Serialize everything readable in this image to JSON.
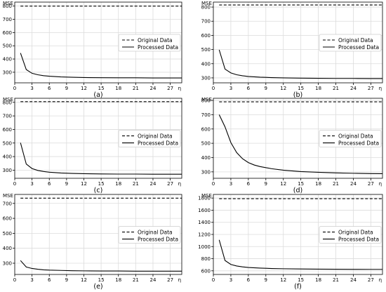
{
  "chart_data": [
    {
      "type": "line",
      "panel_label": "(a)",
      "ylabel": "MSE",
      "xlabel": "η",
      "xlim": [
        0,
        29
      ],
      "ylim": [
        220,
        830
      ],
      "xticks": [
        0,
        3,
        6,
        9,
        12,
        15,
        18,
        21,
        24,
        27
      ],
      "xtick_labels": [
        "0",
        "3",
        "6",
        "9",
        "12",
        "15",
        "18",
        "21",
        "24",
        "27"
      ],
      "yticks": [
        300,
        400,
        500,
        600,
        700,
        800
      ],
      "ytick_labels": [
        "300",
        "400",
        "500",
        "600",
        "700",
        "800"
      ],
      "grid": true,
      "legend": "center-right",
      "series": [
        {
          "name": "Original Data",
          "style": "dashed",
          "x": [
            1,
            29
          ],
          "y": [
            800,
            800
          ]
        },
        {
          "name": "Processed Data",
          "style": "solid",
          "x": [
            1,
            2,
            3,
            4,
            5,
            6,
            8,
            10,
            12,
            15,
            18,
            21,
            24,
            27,
            29
          ],
          "y": [
            445,
            320,
            292,
            281,
            274,
            270,
            265,
            262,
            260,
            259,
            258,
            258,
            257,
            257,
            257
          ]
        }
      ]
    },
    {
      "type": "line",
      "panel_label": "(b)",
      "ylabel": "MSE",
      "xlabel": "η",
      "xlim": [
        0,
        29
      ],
      "ylim": [
        265,
        835
      ],
      "xticks": [
        0,
        3,
        6,
        9,
        12,
        15,
        18,
        21,
        24,
        27
      ],
      "xtick_labels": [
        "0",
        "3",
        "6",
        "9",
        "12",
        "15",
        "18",
        "21",
        "24",
        "27"
      ],
      "yticks": [
        300,
        400,
        500,
        600,
        700,
        800
      ],
      "ytick_labels": [
        "300",
        "400",
        "500",
        "600",
        "700",
        "800"
      ],
      "grid": true,
      "legend": "center-right",
      "series": [
        {
          "name": "Original Data",
          "style": "dashed",
          "x": [
            1,
            29
          ],
          "y": [
            815,
            815
          ]
        },
        {
          "name": "Processed Data",
          "style": "solid",
          "x": [
            1,
            2,
            3,
            4,
            5,
            6,
            8,
            10,
            12,
            15,
            18,
            21,
            24,
            27,
            29
          ],
          "y": [
            498,
            362,
            335,
            322,
            315,
            310,
            305,
            302,
            300,
            298,
            297,
            296,
            296,
            295,
            295
          ]
        }
      ]
    },
    {
      "type": "line",
      "panel_label": "(c)",
      "ylabel": "MSE",
      "xlabel": "η",
      "xlim": [
        0,
        29
      ],
      "ylim": [
        240,
        830
      ],
      "xticks": [
        0,
        3,
        6,
        9,
        12,
        15,
        18,
        21,
        24,
        27
      ],
      "xtick_labels": [
        "0",
        "3",
        "6",
        "9",
        "12",
        "15",
        "18",
        "21",
        "24",
        "27"
      ],
      "yticks": [
        300,
        400,
        500,
        600,
        700,
        800
      ],
      "ytick_labels": [
        "300",
        "400",
        "500",
        "600",
        "700",
        "800"
      ],
      "grid": true,
      "legend": "center-right",
      "series": [
        {
          "name": "Original Data",
          "style": "dashed",
          "x": [
            1,
            29
          ],
          "y": [
            805,
            805
          ]
        },
        {
          "name": "Processed Data",
          "style": "solid",
          "x": [
            1,
            2,
            3,
            4,
            5,
            6,
            8,
            10,
            12,
            15,
            18,
            21,
            24,
            27,
            29
          ],
          "y": [
            502,
            345,
            312,
            298,
            290,
            285,
            279,
            276,
            274,
            272,
            271,
            271,
            270,
            270,
            270
          ]
        }
      ]
    },
    {
      "type": "line",
      "panel_label": "(d)",
      "ylabel": "MSE",
      "xlabel": "η",
      "xlim": [
        0,
        29
      ],
      "ylim": [
        255,
        815
      ],
      "xticks": [
        0,
        3,
        6,
        9,
        12,
        15,
        18,
        21,
        24,
        27
      ],
      "xtick_labels": [
        "0",
        "3",
        "6",
        "9",
        "12",
        "15",
        "18",
        "21",
        "24",
        "27"
      ],
      "yticks": [
        300,
        400,
        500,
        600,
        700,
        800
      ],
      "ytick_labels": [
        "300",
        "400",
        "500",
        "600",
        "700",
        "800"
      ],
      "grid": true,
      "legend": "center-right",
      "series": [
        {
          "name": "Original Data",
          "style": "dashed",
          "x": [
            1,
            29
          ],
          "y": [
            790,
            790
          ]
        },
        {
          "name": "Processed Data",
          "style": "solid",
          "x": [
            1,
            2,
            3,
            4,
            5,
            6,
            7,
            8,
            10,
            12,
            15,
            18,
            21,
            24,
            27,
            29
          ],
          "y": [
            700,
            615,
            505,
            435,
            392,
            365,
            348,
            337,
            322,
            312,
            302,
            297,
            293,
            290,
            288,
            287
          ]
        }
      ]
    },
    {
      "type": "line",
      "panel_label": "(e)",
      "ylabel": "MSE",
      "xlabel": "η",
      "xlim": [
        0,
        29
      ],
      "ylim": [
        225,
        760
      ],
      "xticks": [
        0,
        3,
        6,
        9,
        12,
        15,
        18,
        21,
        24,
        27
      ],
      "xtick_labels": [
        "0",
        "3",
        "6",
        "9",
        "12",
        "15",
        "18",
        "21",
        "24",
        "27"
      ],
      "yticks": [
        300,
        400,
        500,
        600,
        700
      ],
      "ytick_labels": [
        "300",
        "400",
        "500",
        "600",
        "700"
      ],
      "grid": true,
      "legend": "center-right",
      "series": [
        {
          "name": "Original Data",
          "style": "dashed",
          "x": [
            1,
            29
          ],
          "y": [
            735,
            735
          ]
        },
        {
          "name": "Processed Data",
          "style": "solid",
          "x": [
            1,
            2,
            3,
            4,
            5,
            6,
            8,
            10,
            12,
            15,
            18,
            21,
            24,
            27,
            29
          ],
          "y": [
            318,
            275,
            265,
            260,
            256,
            254,
            252,
            250,
            249,
            248,
            248,
            247,
            247,
            247,
            247
          ]
        }
      ]
    },
    {
      "type": "line",
      "panel_label": "(f)",
      "ylabel": "MSE",
      "xlabel": "η",
      "xlim": [
        0,
        29
      ],
      "ylim": [
        540,
        1860
      ],
      "xticks": [
        0,
        3,
        6,
        9,
        12,
        15,
        18,
        21,
        24,
        27
      ],
      "xtick_labels": [
        "0",
        "3",
        "6",
        "9",
        "12",
        "15",
        "18",
        "21",
        "24",
        "27"
      ],
      "yticks": [
        600,
        800,
        1000,
        1200,
        1400,
        1600,
        1800
      ],
      "ytick_labels": [
        "600",
        "800",
        "1000",
        "1200",
        "1400",
        "1600",
        "1800"
      ],
      "grid": true,
      "legend": "center-right",
      "series": [
        {
          "name": "Original Data",
          "style": "dashed",
          "x": [
            1,
            29
          ],
          "y": [
            1790,
            1790
          ]
        },
        {
          "name": "Processed Data",
          "style": "solid",
          "x": [
            1,
            2,
            3,
            4,
            5,
            6,
            8,
            10,
            12,
            15,
            18,
            21,
            24,
            27,
            29
          ],
          "y": [
            1110,
            770,
            705,
            680,
            665,
            655,
            645,
            638,
            634,
            630,
            628,
            626,
            625,
            624,
            624
          ]
        }
      ]
    }
  ]
}
